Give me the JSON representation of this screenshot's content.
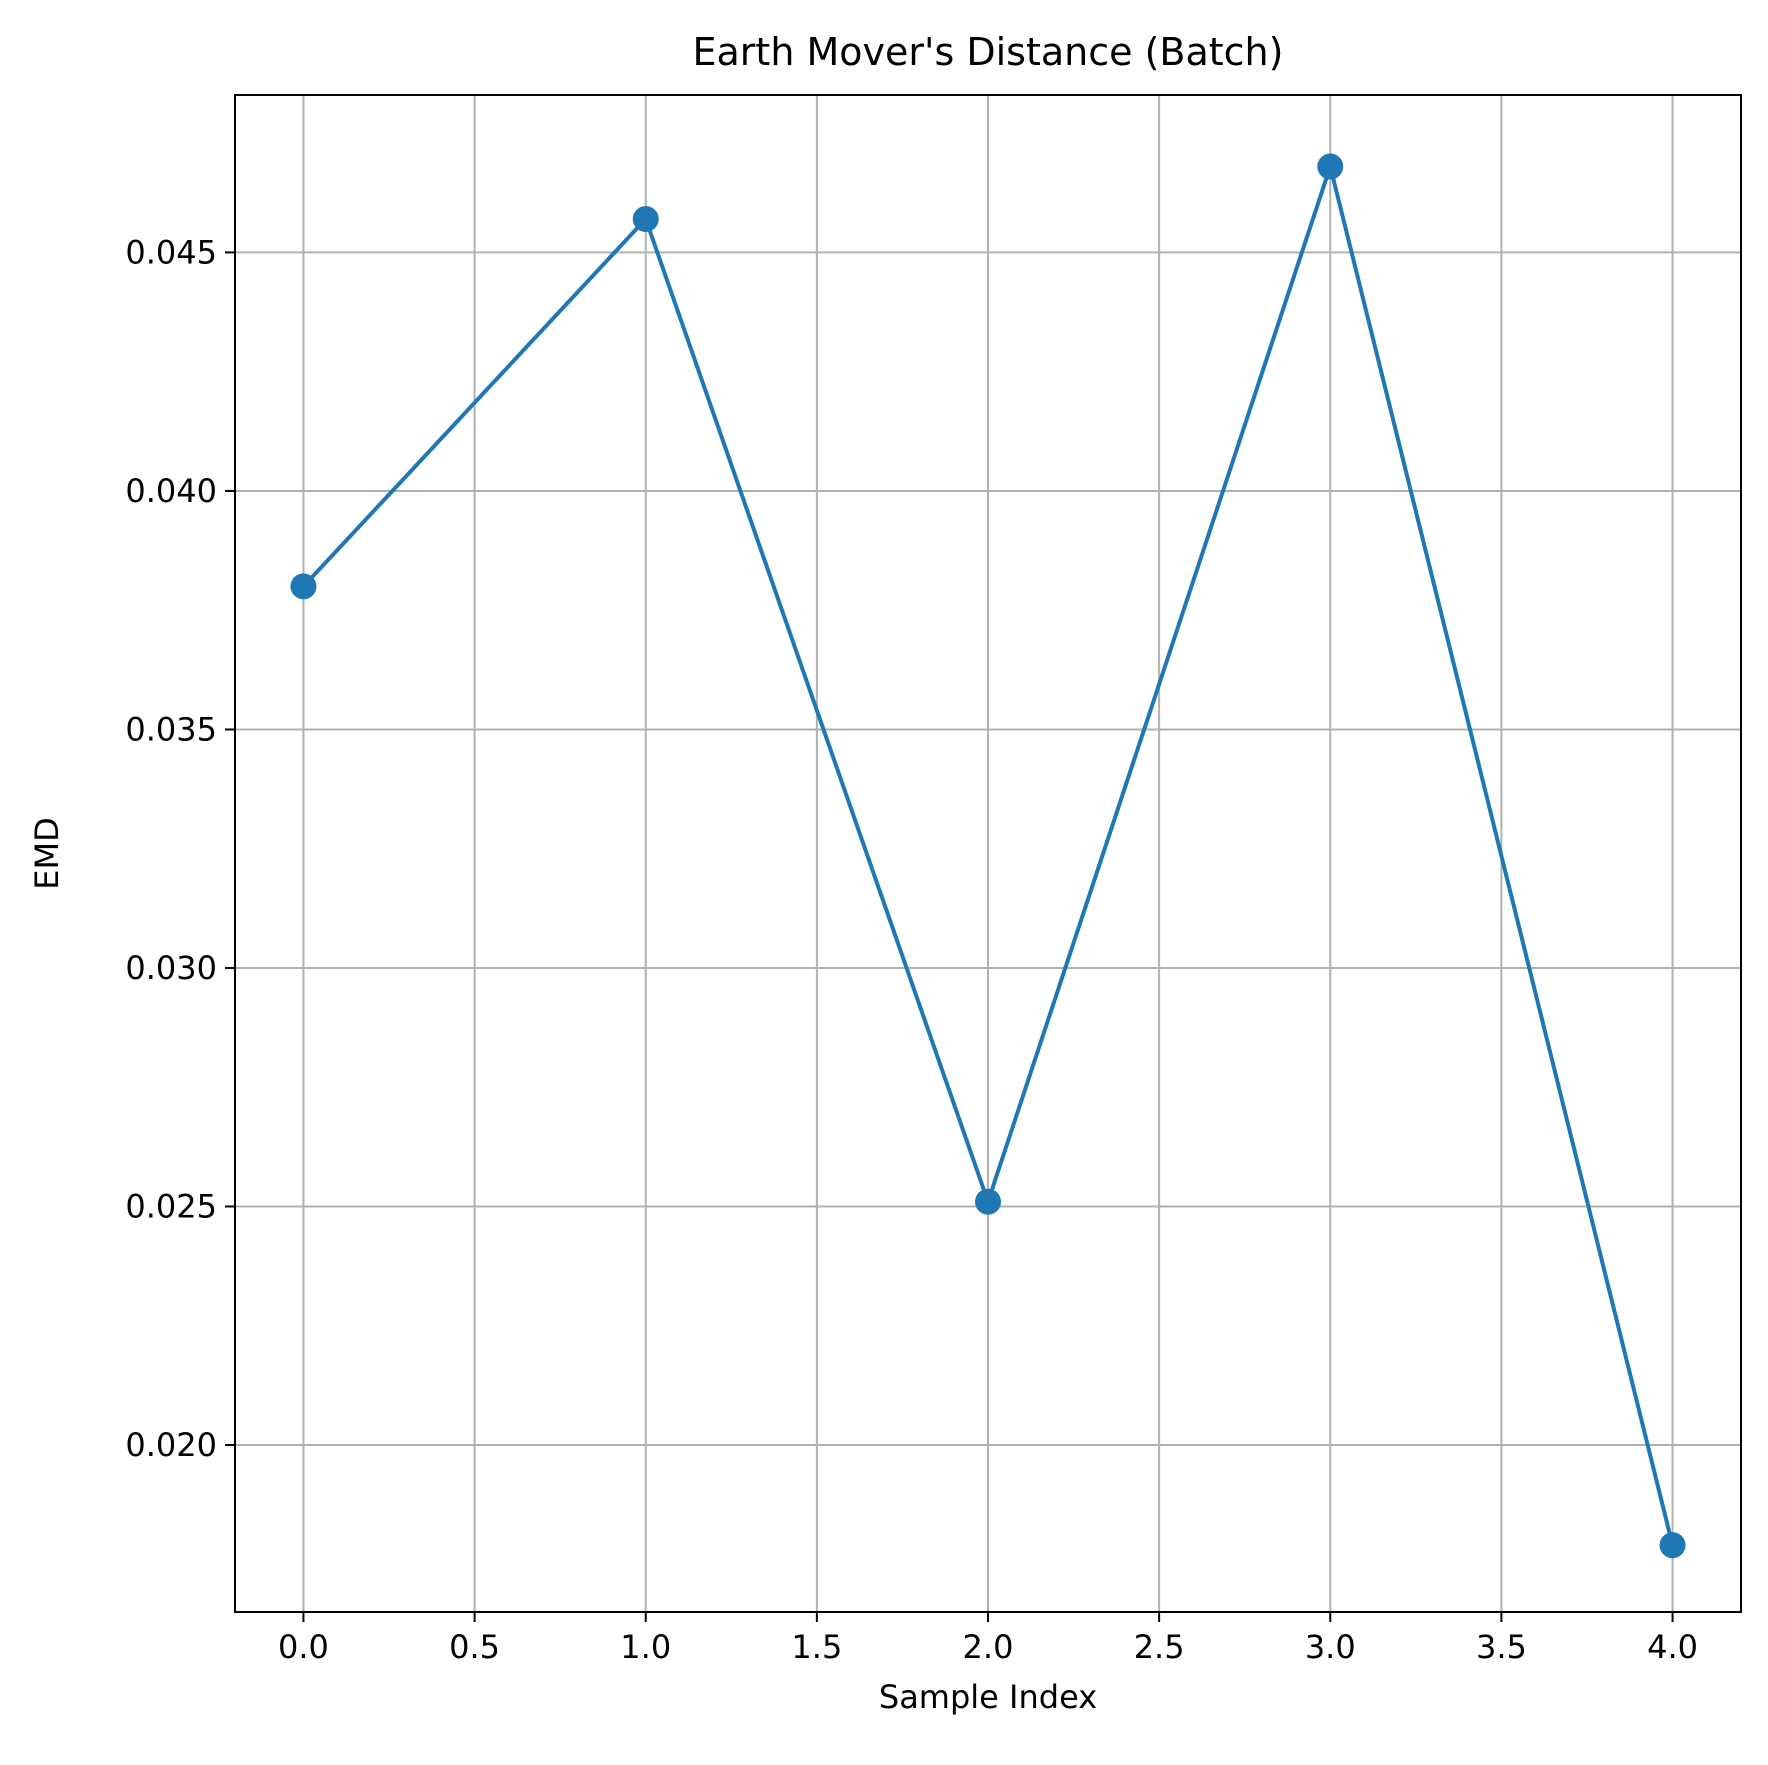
{
  "chart_data": {
    "type": "line",
    "title": "Earth Mover's Distance (Batch)",
    "xlabel": "Sample Index",
    "ylabel": "EMD",
    "xlim": [
      -0.2,
      4.2
    ],
    "ylim": [
      0.0165,
      0.0483
    ],
    "xticks": [
      0.0,
      0.5,
      1.0,
      1.5,
      2.0,
      2.5,
      3.0,
      3.5,
      4.0
    ],
    "xtick_labels": [
      "0.0",
      "0.5",
      "1.0",
      "1.5",
      "2.0",
      "2.5",
      "3.0",
      "3.5",
      "4.0"
    ],
    "yticks": [
      0.02,
      0.025,
      0.03,
      0.035,
      0.04,
      0.045
    ],
    "ytick_labels": [
      "0.020",
      "0.025",
      "0.030",
      "0.035",
      "0.040",
      "0.045"
    ],
    "grid": true,
    "series": [
      {
        "x": [
          0,
          1,
          2,
          3,
          4
        ],
        "y": [
          0.038,
          0.0457,
          0.0251,
          0.0468,
          0.0179
        ],
        "color": "#1f77b4",
        "marker": "circle"
      }
    ]
  }
}
